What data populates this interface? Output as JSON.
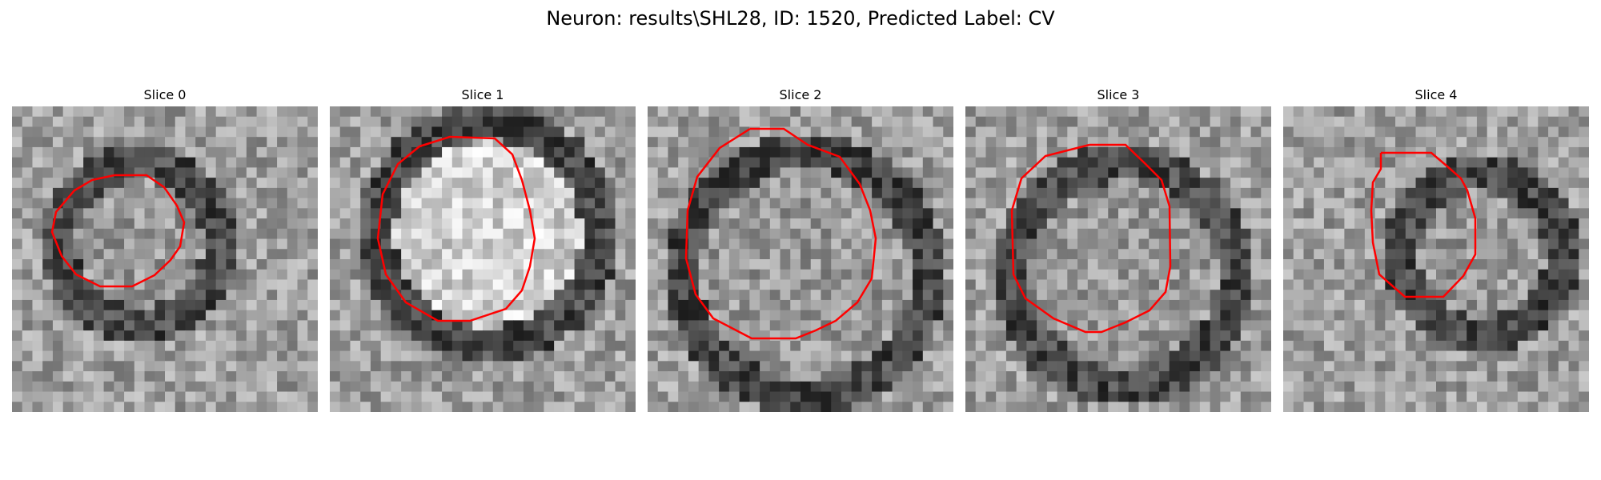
{
  "figure": {
    "title": "Neuron: results\\SHL28, ID: 1520, Predicted Label: CV"
  },
  "colors": {
    "contour": "#ff0000",
    "colormap": "gray"
  },
  "panels": [
    {
      "title": "Slice 0",
      "image": "grayscale-em-patch",
      "contour": "red-polygon"
    },
    {
      "title": "Slice 1",
      "image": "grayscale-em-patch",
      "contour": "red-polygon"
    },
    {
      "title": "Slice 2",
      "image": "grayscale-em-patch",
      "contour": "red-polygon"
    },
    {
      "title": "Slice 3",
      "image": "grayscale-em-patch",
      "contour": "red-polygon"
    },
    {
      "title": "Slice 4",
      "image": "grayscale-em-patch",
      "contour": "red-polygon"
    }
  ]
}
